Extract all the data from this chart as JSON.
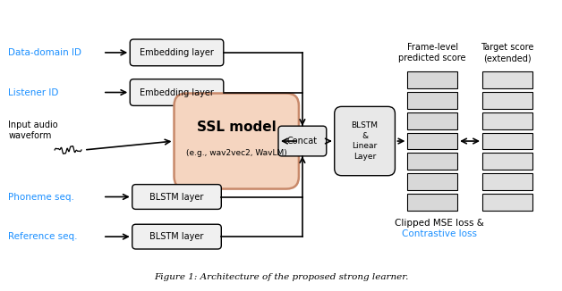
{
  "title": "Figure 1: Architecture of the proposed strong learner.",
  "blue_color": "#1a8fff",
  "black_color": "#000000",
  "box_fill": "#f0f0f0",
  "ssl_fill": "#f5d5c0",
  "ssl_edge": "#c8896a",
  "concat_fill": "#e8e8e8",
  "labels": {
    "data_domain": "Data-domain ID",
    "listener": "Listener ID",
    "input_audio": "Input audio\nwaveform",
    "phoneme": "Phoneme seq.",
    "reference": "Reference seq.",
    "embed1": "Embedding layer",
    "embed2": "Embedding layer",
    "ssl": "SSL model",
    "ssl_sub": "(e.g., wav2vec2, WavLM)",
    "concat": "Concat",
    "blstm_linear": "BLSTM\n&\nLinear\nLayer",
    "blstm1": "BLSTM layer",
    "blstm2": "BLSTM layer",
    "frame_level": "Frame-level\npredicted score",
    "target_score": "Target score\n(extended)",
    "clipped_mse": "Clipped MSE loss &",
    "contrastive": "Contrastive loss"
  }
}
